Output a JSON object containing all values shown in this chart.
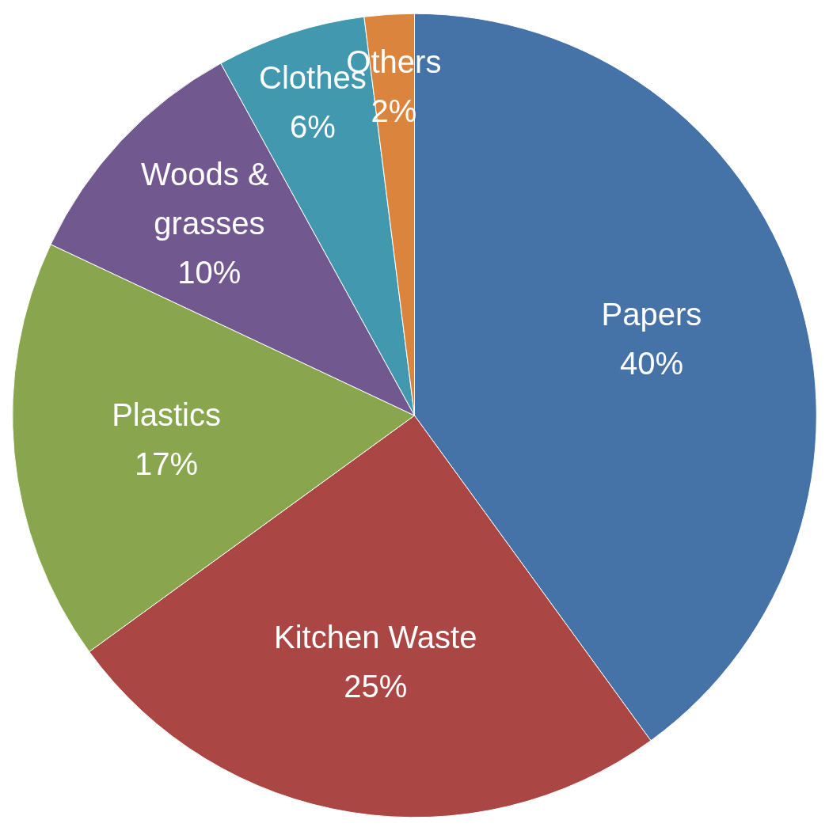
{
  "chart_data": {
    "type": "pie",
    "categories": [
      "Papers",
      "Kitchen Waste",
      "Plastics",
      "Woods & grasses",
      "Clothes",
      "Others"
    ],
    "values": [
      40,
      25,
      17,
      10,
      6,
      2
    ],
    "colors": [
      "#4572a7",
      "#aa4643",
      "#89a54e",
      "#71588f",
      "#4198af",
      "#db843d"
    ],
    "value_labels": [
      "40%",
      "25%",
      "17%",
      "10%",
      "6%",
      "2%"
    ],
    "legend": false
  }
}
